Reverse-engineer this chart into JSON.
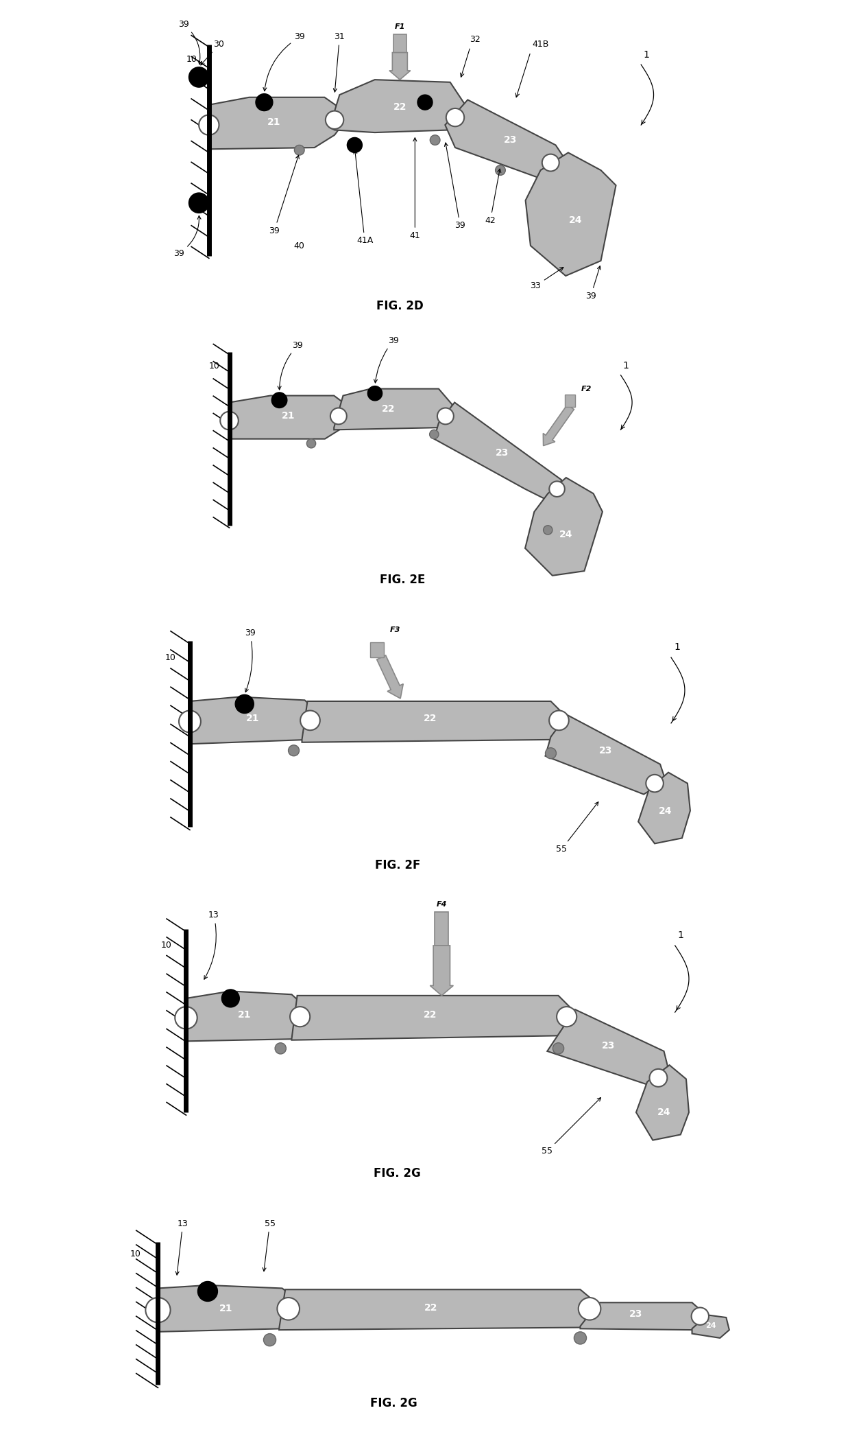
{
  "bg_color": "#ffffff",
  "seg_color": "#b8b8b8",
  "seg_edge": "#444444",
  "fig2d_label": "FIG. 2D",
  "fig2e_label": "FIG. 2E",
  "fig2f_label": "FIG. 2F",
  "fig2g_label": "FIG. 2G",
  "force_color": "#b0b0b0",
  "force_edge": "#888888",
  "wall_lw": 5,
  "joint_white_r": 0.13,
  "joint_gray_r": 0.09,
  "magnet_r": 0.14,
  "small_gray_r": 0.08,
  "label_fs": 9,
  "seg_label_fs": 10,
  "fig_label_fs": 12
}
